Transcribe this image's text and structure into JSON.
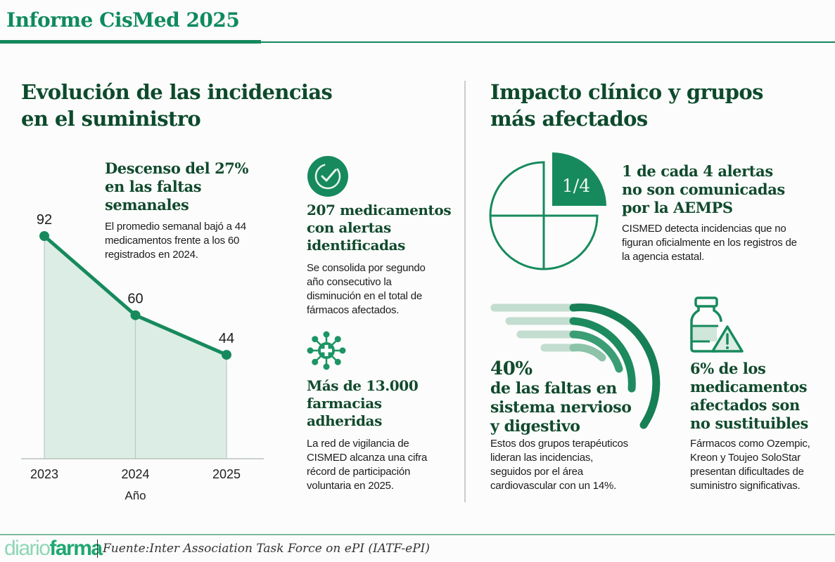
{
  "header": {
    "title": "Informe CisMed 2025"
  },
  "left_section": {
    "title_lines": [
      "Evolución de las incidencias",
      "en el suministro"
    ],
    "chart_heading_lines": [
      "Descenso del 27%",
      "en las faltas",
      "semanales"
    ],
    "chart_description_lines": [
      "El promedio semanal bajó a 44",
      "medicamentos frente a los 60",
      "registrados en 2024."
    ],
    "stats": [
      {
        "icon": "check-circle-icon",
        "heading_lines": [
          "207 medicamentos",
          "con alertas",
          "identificadas"
        ],
        "text_lines": [
          "Se consolida por segundo",
          "año consecutivo la",
          "disminución en el total de",
          "fármacos afectados."
        ]
      },
      {
        "icon": "pharmacy-network-icon",
        "heading_lines": [
          "Más de 13.000",
          "farmacias",
          "adheridas"
        ],
        "text_lines": [
          "La red de vigilancia de",
          "CISMED alcanza una cifra",
          "récord de participación",
          "voluntaria en 2025."
        ]
      }
    ]
  },
  "right_section": {
    "title_lines": [
      "Impacto clínico y grupos",
      "más afectados"
    ],
    "fraction_block": {
      "icon": "quarter-pie-icon",
      "fraction_label": "1/4",
      "fraction_value": 0.25,
      "heading_lines": [
        "1 de cada 4 alertas",
        "no son comunicadas",
        "por la AEMPS"
      ],
      "text_lines": [
        "CISMED detecta incidencias que no",
        "figuran oficialmente en los registros de",
        "la agencia estatal."
      ]
    },
    "percent_block": {
      "icon": "concentric-arcs-icon",
      "percent": "40%",
      "heading_lines": [
        "de las faltas en",
        "sistema nervioso",
        "y digestivo"
      ],
      "text_lines": [
        "Estos dos grupos terapéuticos",
        "lideran las incidencias,",
        "seguidos por el área",
        "cardiovascular con un 14%."
      ]
    },
    "nonsubstitutable_block": {
      "icon": "medicine-bottle-warning-icon",
      "heading_lines": [
        "6% de los",
        "medicamentos",
        "afectados son",
        "no sustituibles"
      ],
      "text_lines": [
        "Fármacos como Ozempic,",
        "Kreon y Toujeo SoloStar",
        "presentan dificultades de",
        "suministro significativas."
      ]
    }
  },
  "footer": {
    "logo_part1": "diario",
    "logo_part2": "farma",
    "source": "Fuente:Inter Association Task Force on ePI (IATF-ePI)"
  },
  "colors": {
    "brand_green": "#13875d",
    "dark_green_text": "#0d4a2c",
    "area_fill": "#dcede5",
    "light_bar": "#bcdacb"
  },
  "chart_data": {
    "type": "area",
    "title": "Descenso del 27% en las faltas semanales",
    "xlabel": "Año",
    "ylabel": "",
    "categories": [
      "2023",
      "2024",
      "2025"
    ],
    "values": [
      92,
      60,
      44
    ],
    "data_labels": [
      "92",
      "60",
      "44"
    ],
    "ylim": [
      2,
      92
    ],
    "grid": false,
    "legend": "none"
  }
}
